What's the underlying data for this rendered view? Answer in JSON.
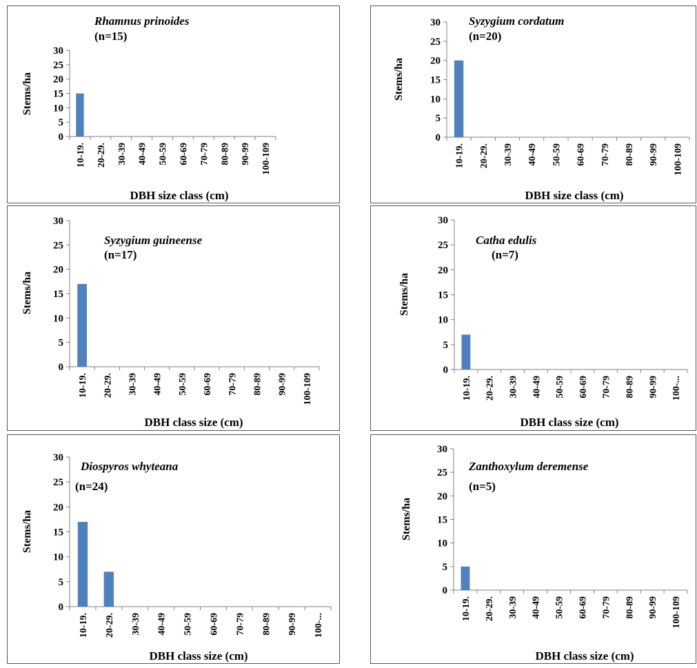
{
  "chart_data": [
    {
      "type": "bar",
      "title": "Rhamnus prinoides",
      "subtitle": "(n=15)",
      "categories": [
        "10-19.",
        "20-29.",
        "30-39",
        "40-49",
        "50-59",
        "60-69",
        "70-79",
        "80-89",
        "90-99",
        "100-109"
      ],
      "values": [
        15,
        0,
        0,
        0,
        0,
        0,
        0,
        0,
        0,
        0
      ],
      "xlabel": "DBH size class (cm)",
      "ylabel": "Stems/ha",
      "ylim": [
        0,
        30
      ],
      "yticks": [
        0,
        5,
        10,
        15,
        20,
        25,
        30
      ],
      "color": "#4F81BD",
      "grid": false
    },
    {
      "type": "bar",
      "title": "Syzygium cordatum",
      "subtitle": "(n=20)",
      "categories": [
        "10-19.",
        "20-29.",
        "30-39",
        "40-49",
        "50-59",
        "60-69",
        "70-79",
        "80-89",
        "90-99",
        "100-109"
      ],
      "values": [
        20,
        0,
        0,
        0,
        0,
        0,
        0,
        0,
        0,
        0
      ],
      "xlabel": "DBH size class (cm)",
      "ylabel": "Stems/ha",
      "ylim": [
        0,
        30
      ],
      "yticks": [
        0,
        5,
        10,
        15,
        20,
        25,
        30
      ],
      "color": "#4F81BD",
      "grid": false
    },
    {
      "type": "bar",
      "title": "Syzygium guineense",
      "subtitle": "(n=17)",
      "categories": [
        "10-19.",
        "20-29.",
        "30-39",
        "40-49",
        "50-59",
        "60-69",
        "70-79",
        "80-89",
        "90-99",
        "100-109"
      ],
      "values": [
        17,
        0,
        0,
        0,
        0,
        0,
        0,
        0,
        0,
        0
      ],
      "xlabel": "DBH class size (cm)",
      "ylabel": "Stems/ha",
      "ylim": [
        0,
        30
      ],
      "yticks": [
        0,
        5,
        10,
        15,
        20,
        25,
        30
      ],
      "color": "#4F81BD",
      "grid": false
    },
    {
      "type": "bar",
      "title": "Catha edulis",
      "subtitle": "(n=7)",
      "categories": [
        "10-19.",
        "20-29.",
        "30-39",
        "40-49",
        "50-59",
        "60-69",
        "70-79",
        "80-89",
        "90-99",
        "100-..."
      ],
      "values": [
        7,
        0,
        0,
        0,
        0,
        0,
        0,
        0,
        0,
        0
      ],
      "xlabel": "DBH class size (cm)",
      "ylabel": "Stems/ha",
      "ylim": [
        0,
        30
      ],
      "yticks": [
        0,
        5,
        10,
        15,
        20,
        25,
        30
      ],
      "color": "#4F81BD",
      "grid": false
    },
    {
      "type": "bar",
      "title": "Diospyros  whyteana",
      "subtitle": "(n=24)",
      "categories": [
        "10-19.",
        "20-29.",
        "30-39",
        "40-49",
        "50-59",
        "60-69",
        "70-79",
        "80-89",
        "90-99",
        "100-..."
      ],
      "values": [
        17,
        7,
        0,
        0,
        0,
        0,
        0,
        0,
        0,
        0
      ],
      "xlabel": "DBH class size (cm)",
      "ylabel": "Stems/ha",
      "ylim": [
        0,
        30
      ],
      "yticks": [
        0,
        5,
        10,
        15,
        20,
        25,
        30
      ],
      "color": "#4F81BD",
      "grid": false
    },
    {
      "type": "bar",
      "title": "Zanthoxylum deremense",
      "subtitle": "(n=5)",
      "categories": [
        "10-19.",
        "20-29.",
        "30-39",
        "40-49",
        "50-59",
        "60-69",
        "70-79",
        "80-89",
        "90-99",
        "100-109"
      ],
      "values": [
        5,
        0,
        0,
        0,
        0,
        0,
        0,
        0,
        0,
        0
      ],
      "xlabel": "DBH class size (cm)",
      "ylabel": "Stems/ha",
      "ylim": [
        0,
        30
      ],
      "yticks": [
        0,
        5,
        10,
        15,
        20,
        25,
        30
      ],
      "color": "#4F81BD",
      "grid": false
    }
  ]
}
